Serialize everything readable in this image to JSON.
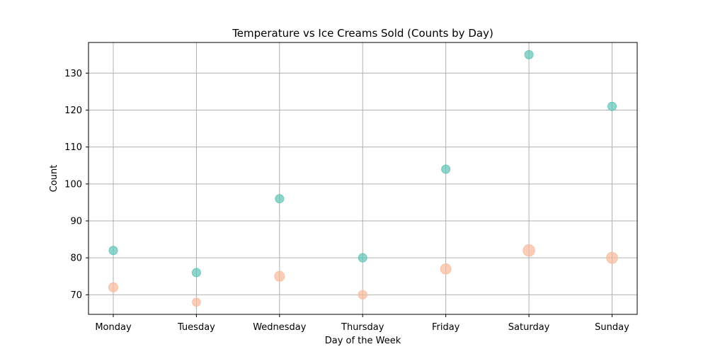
{
  "chart_data": {
    "type": "scatter",
    "title": "Temperature vs Ice Creams Sold (Counts by Day)",
    "xlabel": "Day of the Week",
    "ylabel": "Count",
    "categories": [
      "Monday",
      "Tuesday",
      "Wednesday",
      "Thursday",
      "Friday",
      "Saturday",
      "Sunday"
    ],
    "ylim": [
      64.7,
      138.3
    ],
    "yticks": [
      70,
      80,
      90,
      100,
      110,
      120,
      130
    ],
    "grid": true,
    "series": [
      {
        "key": "ice_creams",
        "color": "#5ec4b6",
        "values": [
          82,
          76,
          96,
          80,
          104,
          135,
          121
        ],
        "marker_size": "small"
      },
      {
        "key": "temperature",
        "color": "#f9b99c",
        "values": [
          72,
          68,
          75,
          70,
          77,
          82,
          80
        ],
        "marker_size": "scaled-by-value"
      }
    ]
  }
}
